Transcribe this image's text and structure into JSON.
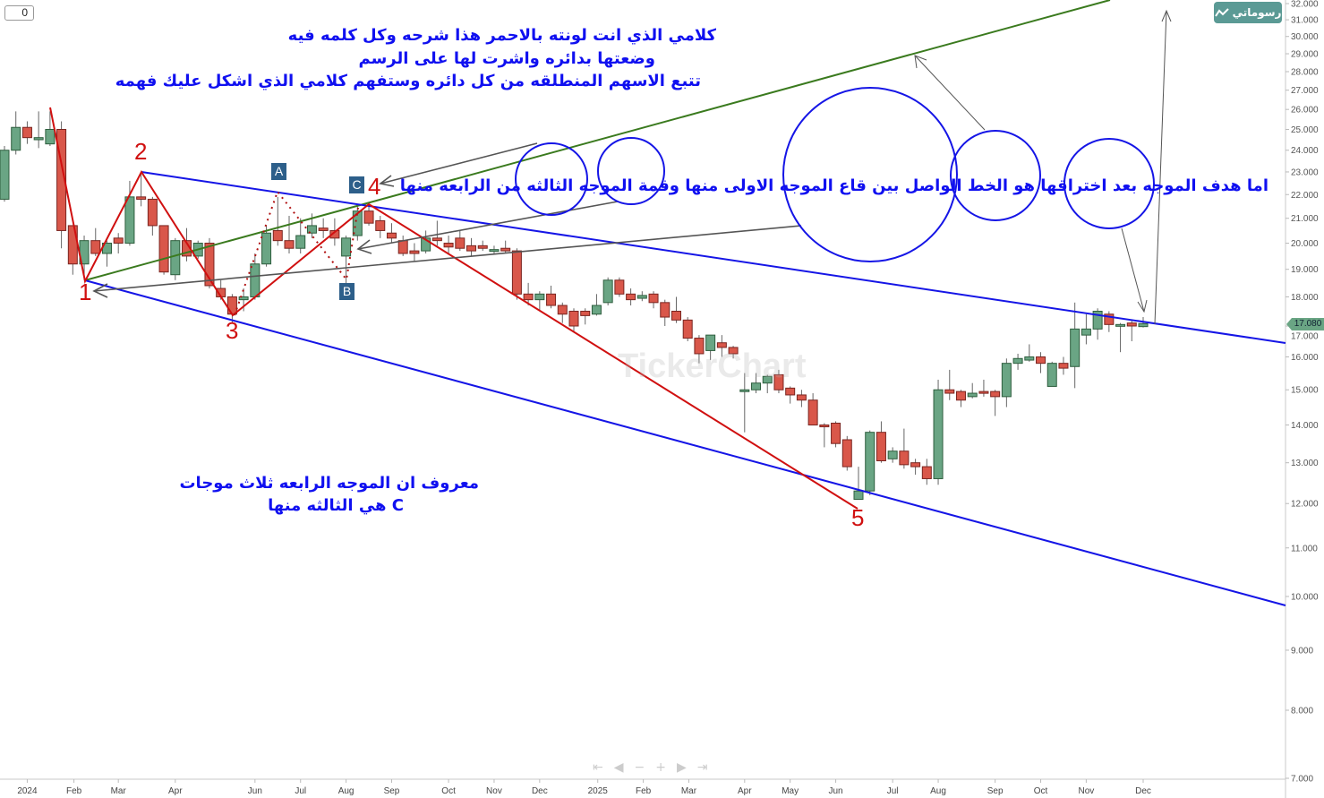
{
  "toolbar": {
    "zero_value": "0",
    "drawings_label": "رسوماتي",
    "drawings_icon": "line-chart-icon"
  },
  "watermark": "TickerChart",
  "nav": [
    "⇤",
    "◀",
    "−",
    "+",
    "▶",
    "⇥"
  ],
  "price_tag": "17.080",
  "colors": {
    "up": "#6aa584",
    "down": "#d9574a",
    "wave": "#d01010",
    "channel": "#1515e6",
    "trend": "#3a7a1e",
    "arrow": "#555555",
    "text": "#1010f0"
  },
  "annotations": {
    "top_line1": "كلامي الذي انت لونته  بالاحمر  هذا شرحه وكل كلمه فيه",
    "top_line2": "وضعتها بدائره واشرت لها على الرسم",
    "top_line3": "تتبع الاسهم  المنطلقه من كل دائره وستفهم كلامي الذي اشكل عليك فهمه",
    "middle_line": "اما هدف الموجه بعد اختراقها هو الخط الواصل بين قاع الموجه الاولى منها وقمة الموجه الثالثه من الرابعه منها",
    "bottom_line1": "معروف ان الموجه الرابعه ثلاث موجات",
    "bottom_line2": "C هي الثالثه منها"
  },
  "wave_labels": [
    "1",
    "2",
    "3",
    "4",
    "5"
  ],
  "sub_wave_labels": [
    "A",
    "B",
    "C"
  ],
  "chart_data": {
    "type": "candlestick",
    "y_scale": "log",
    "ylim": [
      7,
      32
    ],
    "y_ticks": [
      "32.000",
      "31.000",
      "30.000",
      "29.000",
      "28.000",
      "27.000",
      "26.000",
      "25.000",
      "24.000",
      "23.000",
      "22.000",
      "21.000",
      "20.000",
      "19.000",
      "18.000",
      "17.000",
      "16.000",
      "15.000",
      "14.000",
      "13.000",
      "12.000",
      "11.000",
      "10.000",
      "9.000",
      "8.000",
      "7.000"
    ],
    "x_ticks": [
      "2024",
      "Feb",
      "Mar",
      "Apr",
      "Jun",
      "Jul",
      "Aug",
      "Sep",
      "Oct",
      "Nov",
      "Dec",
      "2025",
      "Feb",
      "Mar",
      "Apr",
      "May",
      "Jun",
      "Jul",
      "Aug",
      "Sep",
      "Oct",
      "Nov",
      "Dec"
    ],
    "last_price": 17.08,
    "ohlc": [
      [
        21.8,
        24.2,
        21.7,
        24.0
      ],
      [
        24.0,
        25.9,
        23.8,
        25.1
      ],
      [
        25.1,
        25.4,
        24.3,
        24.6
      ],
      [
        24.5,
        25.9,
        24.1,
        24.6
      ],
      [
        24.3,
        25.9,
        24.2,
        25.0
      ],
      [
        25.0,
        25.4,
        19.8,
        20.5
      ],
      [
        20.7,
        20.7,
        18.8,
        19.2
      ],
      [
        19.2,
        20.3,
        18.6,
        20.1
      ],
      [
        20.1,
        20.6,
        19.5,
        19.6
      ],
      [
        19.6,
        20.1,
        19.1,
        20.0
      ],
      [
        20.2,
        20.4,
        19.6,
        20.0
      ],
      [
        20.0,
        22.6,
        19.9,
        21.9
      ],
      [
        21.9,
        23.0,
        21.5,
        21.8
      ],
      [
        21.8,
        21.9,
        20.3,
        20.7
      ],
      [
        20.7,
        20.7,
        18.8,
        18.9
      ],
      [
        18.8,
        20.2,
        18.6,
        20.1
      ],
      [
        20.1,
        20.6,
        19.3,
        19.5
      ],
      [
        19.5,
        20.1,
        19.4,
        20.0
      ],
      [
        20.0,
        20.2,
        18.3,
        18.4
      ],
      [
        18.3,
        18.6,
        17.9,
        18.0
      ],
      [
        18.0,
        18.1,
        17.1,
        17.4
      ],
      [
        17.9,
        18.3,
        17.5,
        18.0
      ],
      [
        18.0,
        19.6,
        17.9,
        19.2
      ],
      [
        19.2,
        20.7,
        19.1,
        20.4
      ],
      [
        20.5,
        21.9,
        19.9,
        20.1
      ],
      [
        20.1,
        21.1,
        19.6,
        19.8
      ],
      [
        19.8,
        21.0,
        19.6,
        20.3
      ],
      [
        20.4,
        21.2,
        20.2,
        20.7
      ],
      [
        20.6,
        21.0,
        20.2,
        20.5
      ],
      [
        20.5,
        21.0,
        19.9,
        20.2
      ],
      [
        19.5,
        20.3,
        18.4,
        20.2
      ],
      [
        20.3,
        21.6,
        20.1,
        21.3
      ],
      [
        21.3,
        21.6,
        20.7,
        20.8
      ],
      [
        20.9,
        21.1,
        20.2,
        20.5
      ],
      [
        20.4,
        20.8,
        20.0,
        20.2
      ],
      [
        20.1,
        20.3,
        19.5,
        19.6
      ],
      [
        19.7,
        20.0,
        19.3,
        19.6
      ],
      [
        19.7,
        20.5,
        19.6,
        20.2
      ],
      [
        20.2,
        20.9,
        19.9,
        20.1
      ],
      [
        20.0,
        20.3,
        19.6,
        19.85
      ],
      [
        20.2,
        20.5,
        19.7,
        19.8
      ],
      [
        19.9,
        20.2,
        19.5,
        19.7
      ],
      [
        19.9,
        20.1,
        19.7,
        19.8
      ],
      [
        19.7,
        19.9,
        19.6,
        19.75
      ],
      [
        19.8,
        20.1,
        19.6,
        19.7
      ],
      [
        19.7,
        19.8,
        17.9,
        18.1
      ],
      [
        18.1,
        18.5,
        17.7,
        17.9
      ],
      [
        17.9,
        18.2,
        17.5,
        18.1
      ],
      [
        18.1,
        18.4,
        17.6,
        17.7
      ],
      [
        17.7,
        17.8,
        17.1,
        17.4
      ],
      [
        17.5,
        17.6,
        16.8,
        17.0
      ],
      [
        17.5,
        17.6,
        17.05,
        17.35
      ],
      [
        17.4,
        18.1,
        17.35,
        17.7
      ],
      [
        17.8,
        18.7,
        17.7,
        18.6
      ],
      [
        18.6,
        18.7,
        18.0,
        18.1
      ],
      [
        18.1,
        18.3,
        17.7,
        17.9
      ],
      [
        17.95,
        18.2,
        17.85,
        18.05
      ],
      [
        18.1,
        18.2,
        17.6,
        17.8
      ],
      [
        17.8,
        17.9,
        17.0,
        17.3
      ],
      [
        17.5,
        18.0,
        17.1,
        17.2
      ],
      [
        17.2,
        17.3,
        16.5,
        16.6
      ],
      [
        16.6,
        16.7,
        15.8,
        16.1
      ],
      [
        16.2,
        16.7,
        15.9,
        16.7
      ],
      [
        16.45,
        16.7,
        16.0,
        16.3
      ],
      [
        16.3,
        16.35,
        15.95,
        16.1
      ],
      [
        14.95,
        15.5,
        13.8,
        15.0
      ],
      [
        15.0,
        15.5,
        14.9,
        15.2
      ],
      [
        15.2,
        15.45,
        14.9,
        15.4
      ],
      [
        15.45,
        15.6,
        14.9,
        15.0
      ],
      [
        15.05,
        15.1,
        14.6,
        14.85
      ],
      [
        14.85,
        15.0,
        14.5,
        14.7
      ],
      [
        14.7,
        14.9,
        14.0,
        14.0
      ],
      [
        14.0,
        14.05,
        13.4,
        13.95
      ],
      [
        14.05,
        14.1,
        13.4,
        13.5
      ],
      [
        13.6,
        13.7,
        12.8,
        12.9
      ],
      [
        12.1,
        12.9,
        12.1,
        12.3
      ],
      [
        12.3,
        13.85,
        12.2,
        13.8
      ],
      [
        13.8,
        14.1,
        13.0,
        13.05
      ],
      [
        13.1,
        13.4,
        13.0,
        13.3
      ],
      [
        13.3,
        13.9,
        12.85,
        12.95
      ],
      [
        13.0,
        13.1,
        12.7,
        12.9
      ],
      [
        12.9,
        13.1,
        12.45,
        12.6
      ],
      [
        12.6,
        15.3,
        12.45,
        15.0
      ],
      [
        15.0,
        15.6,
        14.7,
        14.9
      ],
      [
        14.95,
        15.0,
        14.5,
        14.7
      ],
      [
        14.8,
        15.2,
        14.75,
        14.9
      ],
      [
        14.95,
        15.3,
        14.8,
        14.9
      ],
      [
        14.95,
        15.0,
        14.25,
        14.8
      ],
      [
        14.8,
        15.95,
        14.5,
        15.8
      ],
      [
        15.8,
        16.1,
        15.6,
        15.95
      ],
      [
        15.9,
        16.4,
        15.85,
        16.0
      ],
      [
        16.0,
        16.15,
        15.5,
        15.8
      ],
      [
        15.1,
        15.85,
        15.1,
        15.8
      ],
      [
        15.8,
        16.0,
        15.45,
        15.65
      ],
      [
        15.7,
        17.8,
        15.05,
        16.9
      ],
      [
        16.7,
        17.4,
        16.4,
        16.9
      ],
      [
        16.9,
        17.6,
        16.55,
        17.5
      ],
      [
        17.4,
        17.5,
        16.8,
        17.05
      ],
      [
        17.0,
        17.1,
        16.15,
        17.05
      ],
      [
        17.1,
        17.2,
        16.5,
        17.0
      ],
      [
        16.98,
        17.3,
        16.95,
        17.08
      ]
    ]
  }
}
